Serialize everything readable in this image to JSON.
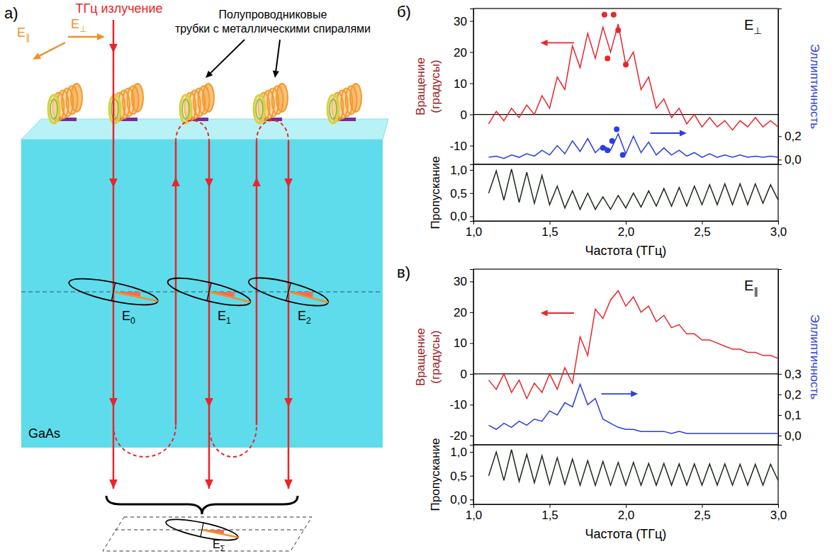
{
  "diagram": {
    "panel_label": "а)",
    "beam_label": "ТГц излучение",
    "field_labels": [
      "E∥",
      "E⊥"
    ],
    "tubes_label": "Полупроводниковые трубки с металлическими спиралями",
    "substrate_label": "GaAs",
    "wave_labels": [
      "E0",
      "E1",
      "E2"
    ],
    "sum_label": "EΣ"
  },
  "chart_data": [
    {
      "type": "line",
      "panel_label": "б)",
      "annotation": "E⊥",
      "ylabel": "Вращение (градусы)",
      "y2label": "Эллиптичность",
      "x": [
        1.1,
        1.15,
        1.2,
        1.25,
        1.3,
        1.35,
        1.4,
        1.45,
        1.5,
        1.55,
        1.6,
        1.65,
        1.7,
        1.75,
        1.8,
        1.85,
        1.9,
        1.95,
        2.0,
        2.05,
        2.1,
        2.15,
        2.2,
        2.25,
        2.3,
        2.35,
        2.4,
        2.45,
        2.5,
        2.55,
        2.6,
        2.65,
        2.7,
        2.75,
        2.8,
        2.85,
        2.9,
        2.95,
        3.0
      ],
      "xlim": [
        1.0,
        3.0
      ],
      "ylim": [
        -16,
        34
      ],
      "yticks": [
        -10,
        0,
        10,
        20,
        30
      ],
      "y2lim": [
        -0.04,
        1.29
      ],
      "y2ticks": [
        {
          "value": 0.0,
          "label": "0,0"
        },
        {
          "value": 0.2,
          "label": "0,2"
        }
      ],
      "hline": 0,
      "series": [
        {
          "color": "#e8262b",
          "line_style": "solid",
          "values": [
            -3,
            1,
            -2,
            2,
            -1,
            3,
            0,
            6,
            2,
            12,
            8,
            22,
            15,
            26,
            18,
            28,
            20,
            29,
            16,
            20,
            8,
            12,
            2,
            5,
            -1,
            2,
            -3,
            0,
            -4,
            -1,
            -4,
            -2,
            -5,
            -2,
            -4,
            -1,
            -4,
            -2,
            -4
          ]
        },
        {
          "color": "#2a3ee0",
          "line_style": "solid",
          "axis": "y2",
          "values": [
            0.02,
            0.03,
            0.01,
            0.04,
            0.02,
            0.05,
            0.03,
            0.08,
            0.04,
            0.12,
            0.05,
            0.16,
            0.07,
            0.18,
            0.06,
            0.12,
            0.08,
            0.22,
            0.05,
            0.2,
            0.06,
            0.15,
            0.04,
            0.1,
            0.04,
            0.08,
            0.03,
            0.06,
            0.02,
            0.05,
            0.02,
            0.04,
            0.02,
            0.04,
            0.02,
            0.03,
            0.02,
            0.03,
            0.02
          ]
        },
        {
          "type": "scatter",
          "marker": "circle",
          "color": "#e8262b",
          "x": [
            1.86,
            1.92,
            1.88,
            1.95,
            2.0
          ],
          "values": [
            32,
            32,
            18,
            27,
            16
          ]
        },
        {
          "type": "scatter",
          "marker": "circle",
          "color": "#2a3ee0",
          "axis": "y2",
          "x": [
            1.85,
            1.88,
            1.91,
            1.94,
            1.98
          ],
          "values": [
            0.1,
            0.08,
            0.16,
            0.26,
            0.04
          ]
        }
      ]
    },
    {
      "type": "line",
      "xlabel": "Частота (ТГц)",
      "ylabel": "Пропускание",
      "x": [
        1.1,
        1.15,
        1.2,
        1.25,
        1.3,
        1.35,
        1.4,
        1.45,
        1.5,
        1.55,
        1.6,
        1.65,
        1.7,
        1.75,
        1.8,
        1.85,
        1.9,
        1.95,
        2.0,
        2.05,
        2.1,
        2.15,
        2.2,
        2.25,
        2.3,
        2.35,
        2.4,
        2.45,
        2.5,
        2.55,
        2.6,
        2.65,
        2.7,
        2.75,
        2.8,
        2.85,
        2.9,
        2.95,
        3.0
      ],
      "xlim": [
        1.0,
        3.0
      ],
      "xticks": [
        {
          "value": 1.0,
          "label": "1,0"
        },
        {
          "value": 1.5,
          "label": "1,5"
        },
        {
          "value": 2.0,
          "label": "2,0"
        },
        {
          "value": 2.5,
          "label": "2,5"
        },
        {
          "value": 3.0,
          "label": "3,0"
        }
      ],
      "ylim": [
        -0.1,
        1.12
      ],
      "yticks": [
        {
          "value": 0.0,
          "label": "0,0"
        },
        {
          "value": 0.5,
          "label": "0,5"
        },
        {
          "value": 1.0,
          "label": "1,0"
        }
      ],
      "series": [
        {
          "color": "#1c2a1c",
          "line_style": "solid",
          "values": [
            0.5,
            0.98,
            0.35,
            1.02,
            0.3,
            0.95,
            0.28,
            0.88,
            0.25,
            0.65,
            0.18,
            0.55,
            0.15,
            0.5,
            0.15,
            0.42,
            0.15,
            0.45,
            0.18,
            0.5,
            0.2,
            0.55,
            0.22,
            0.6,
            0.22,
            0.62,
            0.22,
            0.65,
            0.25,
            0.68,
            0.25,
            0.7,
            0.25,
            0.7,
            0.25,
            0.7,
            0.28,
            0.68,
            0.35
          ]
        }
      ]
    },
    {
      "type": "line",
      "panel_label": "в)",
      "annotation": "E∥",
      "ylabel": "Вращение (градусы)",
      "y2label": "Эллиптичность",
      "x": [
        1.1,
        1.15,
        1.2,
        1.25,
        1.3,
        1.35,
        1.4,
        1.45,
        1.5,
        1.55,
        1.6,
        1.65,
        1.7,
        1.75,
        1.8,
        1.85,
        1.9,
        1.95,
        2.0,
        2.05,
        2.1,
        2.15,
        2.2,
        2.25,
        2.3,
        2.35,
        2.4,
        2.45,
        2.5,
        2.55,
        2.6,
        2.65,
        2.7,
        2.75,
        2.8,
        2.85,
        2.9,
        2.95,
        3.0
      ],
      "xlim": [
        1.0,
        3.0
      ],
      "ylim": [
        -23,
        34
      ],
      "yticks": [
        -20,
        -10,
        0,
        10,
        20,
        30
      ],
      "y2lim": [
        -0.045,
        0.81
      ],
      "y2ticks": [
        {
          "value": 0.0,
          "label": "0,0"
        },
        {
          "value": 0.1,
          "label": "0,1"
        },
        {
          "value": 0.2,
          "label": "0,2"
        },
        {
          "value": 0.3,
          "label": "0,3"
        }
      ],
      "hline": 0,
      "series": [
        {
          "color": "#e8262b",
          "line_style": "solid",
          "values": [
            -2,
            -5,
            0,
            -6,
            -2,
            -8,
            -3,
            -6,
            0,
            -5,
            2,
            -3,
            12,
            6,
            21,
            18,
            24,
            27,
            22,
            25,
            20,
            22,
            17,
            19,
            15,
            16,
            13,
            13,
            11,
            11,
            10,
            9,
            8,
            8,
            7,
            7,
            6,
            6,
            5
          ]
        },
        {
          "color": "#2a3ee0",
          "line_style": "solid",
          "axis": "y2",
          "values": [
            0.05,
            0.03,
            0.06,
            0.04,
            0.07,
            0.05,
            0.08,
            0.07,
            0.12,
            0.1,
            0.16,
            0.14,
            0.25,
            0.15,
            0.18,
            0.08,
            0.06,
            0.04,
            0.03,
            0.03,
            0.02,
            0.02,
            0.02,
            0.02,
            0.01,
            0.02,
            0.01,
            0.01,
            0.01,
            0.01,
            0.01,
            0.01,
            0.01,
            0.01,
            0.01,
            0.01,
            0.01,
            0.01,
            0.01
          ]
        }
      ]
    },
    {
      "type": "line",
      "xlabel": "Частота (ТГц)",
      "ylabel": "Пропускание",
      "x": [
        1.1,
        1.15,
        1.2,
        1.25,
        1.3,
        1.35,
        1.4,
        1.45,
        1.5,
        1.55,
        1.6,
        1.65,
        1.7,
        1.75,
        1.8,
        1.85,
        1.9,
        1.95,
        2.0,
        2.05,
        2.1,
        2.15,
        2.2,
        2.25,
        2.3,
        2.35,
        2.4,
        2.45,
        2.5,
        2.55,
        2.6,
        2.65,
        2.7,
        2.75,
        2.8,
        2.85,
        2.9,
        2.95,
        3.0
      ],
      "xlim": [
        1.0,
        3.0
      ],
      "xticks": [
        {
          "value": 1.0,
          "label": "1,0"
        },
        {
          "value": 1.5,
          "label": "1,5"
        },
        {
          "value": 2.0,
          "label": "2,0"
        },
        {
          "value": 2.5,
          "label": "2,5"
        },
        {
          "value": 3.0,
          "label": "3,0"
        }
      ],
      "ylim": [
        -0.1,
        1.15
      ],
      "yticks": [
        {
          "value": 0.0,
          "label": "0,0"
        },
        {
          "value": 0.5,
          "label": "0,5"
        },
        {
          "value": 1.0,
          "label": "1,0"
        }
      ],
      "series": [
        {
          "color": "#1c2a1c",
          "line_style": "solid",
          "values": [
            0.5,
            1.0,
            0.4,
            1.05,
            0.38,
            0.95,
            0.35,
            0.92,
            0.32,
            0.88,
            0.32,
            0.85,
            0.3,
            0.82,
            0.3,
            0.8,
            0.3,
            0.78,
            0.3,
            0.78,
            0.3,
            0.76,
            0.3,
            0.76,
            0.3,
            0.75,
            0.3,
            0.75,
            0.3,
            0.75,
            0.3,
            0.75,
            0.3,
            0.74,
            0.3,
            0.74,
            0.3,
            0.74,
            0.4
          ]
        }
      ]
    }
  ]
}
